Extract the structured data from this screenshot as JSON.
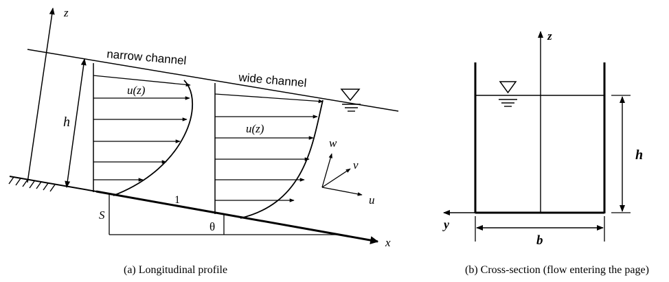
{
  "figure_a": {
    "caption": "(a) Longitudinal profile",
    "labels": {
      "z_axis": "z",
      "x_axis": "x",
      "depth": "h",
      "narrow": "narrow channel",
      "wide": "wide channel",
      "velocity_narrow": "u(z)",
      "velocity_wide": "u(z)",
      "slope": "S",
      "run": "1",
      "angle": "θ",
      "w_axis": "w",
      "v_axis": "v",
      "u_axis": "u"
    }
  },
  "figure_b": {
    "caption": "(b) Cross-section (flow entering the page)",
    "labels": {
      "z_axis": "z",
      "y_axis": "y",
      "depth": "h",
      "width": "b"
    }
  }
}
